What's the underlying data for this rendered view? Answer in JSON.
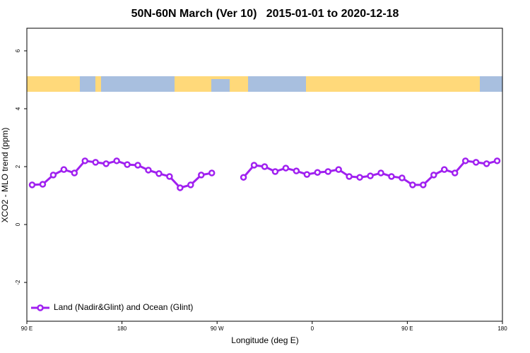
{
  "chart_data": {
    "type": "line",
    "title": "50N-60N March (Ver 10)   2015-01-01 to 2020-12-18",
    "xlabel": "Longitude (deg E)",
    "ylabel": "XCO2 - MLO trend (ppm)",
    "x": [
      95,
      105,
      115,
      125,
      135,
      145,
      155,
      165,
      175,
      185,
      195,
      205,
      215,
      225,
      235,
      245,
      255,
      265,
      275,
      285,
      295,
      305,
      315,
      325,
      335,
      345,
      355,
      365,
      375,
      385,
      395,
      405,
      415,
      425,
      435,
      445,
      455,
      465,
      475,
      485,
      495,
      505,
      515,
      525,
      535
    ],
    "series": [
      {
        "name": "Land (Nadir&Glint) and Ocean (Glint)",
        "color": "#a020f0",
        "values": [
          1.37,
          1.39,
          1.71,
          1.9,
          1.78,
          2.2,
          2.15,
          2.1,
          2.2,
          2.07,
          2.05,
          1.88,
          1.76,
          1.66,
          1.27,
          1.37,
          1.71,
          1.78,
          null,
          null,
          1.63,
          2.05,
          2.0,
          1.83,
          1.95,
          1.85,
          1.73,
          1.8,
          1.83,
          1.9,
          1.66,
          1.63,
          1.68,
          1.78,
          1.66,
          1.61,
          1.37,
          1.37,
          1.71,
          1.9,
          1.78,
          2.2,
          2.15,
          2.1,
          2.2
        ]
      }
    ],
    "xlim": [
      90,
      540
    ],
    "xticks": [
      {
        "value": 90,
        "label": "90 E"
      },
      180,
      {
        "value": 270,
        "label": "90 W"
      },
      {
        "value": 360,
        "label": "0"
      },
      {
        "value": 450,
        "label": "90 E"
      },
      {
        "value": 540,
        "label": "180"
      }
    ],
    "ylim": [
      -3.34,
      6.78
    ],
    "yticks": [
      -2,
      0,
      2,
      4,
      6
    ],
    "grid": false,
    "legend": "bottomleft"
  }
}
